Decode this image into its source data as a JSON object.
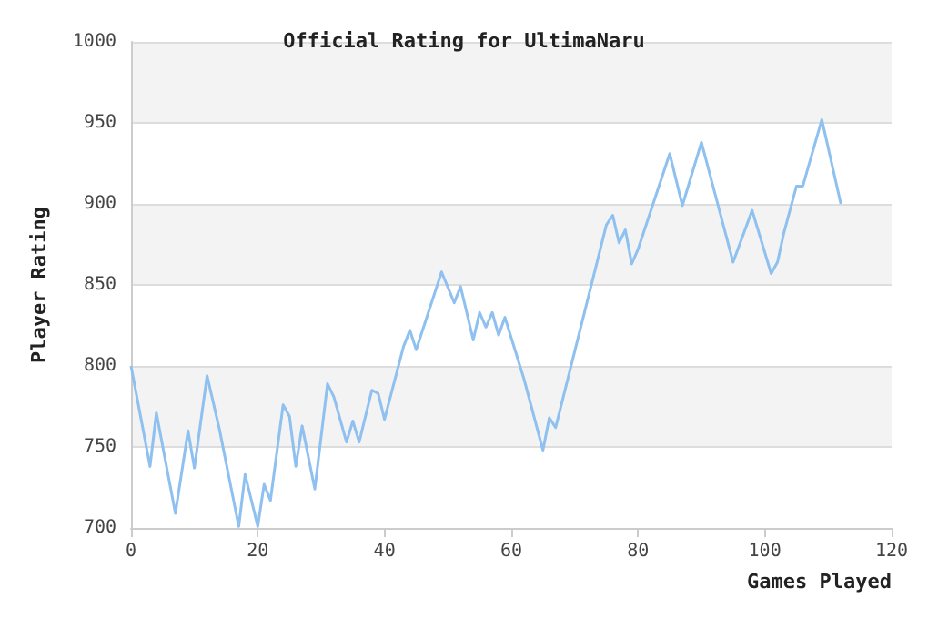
{
  "chart_data": {
    "type": "line",
    "title": "Official Rating for UltimaNaru",
    "xlabel": "Games Played",
    "ylabel": "Player Rating",
    "x": [
      0,
      3,
      4,
      7,
      9,
      10,
      12,
      14,
      17,
      18,
      20,
      21,
      22,
      24,
      25,
      26,
      27,
      29,
      31,
      32,
      34,
      35,
      36,
      38,
      39,
      40,
      43,
      44,
      45,
      49,
      51,
      52,
      54,
      55,
      56,
      57,
      58,
      59,
      62,
      65,
      66,
      67,
      75,
      76,
      77,
      78,
      79,
      80,
      85,
      87,
      90,
      95,
      98,
      101,
      102,
      103,
      105,
      106,
      109,
      112
    ],
    "series": [
      {
        "color": "#8ec0f0",
        "values": [
          800,
          738,
          771,
          709,
          760,
          737,
          794,
          760,
          701,
          733,
          701,
          727,
          717,
          776,
          769,
          738,
          763,
          724,
          789,
          781,
          753,
          766,
          753,
          785,
          783,
          767,
          812,
          822,
          810,
          858,
          839,
          849,
          816,
          833,
          824,
          833,
          819,
          830,
          792,
          748,
          768,
          762,
          887,
          893,
          876,
          884,
          863,
          872,
          931,
          899,
          938,
          864,
          896,
          857,
          864,
          882,
          911,
          911,
          952,
          900
        ]
      }
    ],
    "xlim": [
      0,
      120
    ],
    "xticks": [
      0,
      20,
      40,
      60,
      80,
      100,
      120
    ],
    "ylim": [
      700,
      1000
    ],
    "yticks": [
      700,
      750,
      800,
      850,
      900,
      950,
      1000
    ],
    "grid": "y",
    "marker": "none",
    "line_style": "solid"
  }
}
